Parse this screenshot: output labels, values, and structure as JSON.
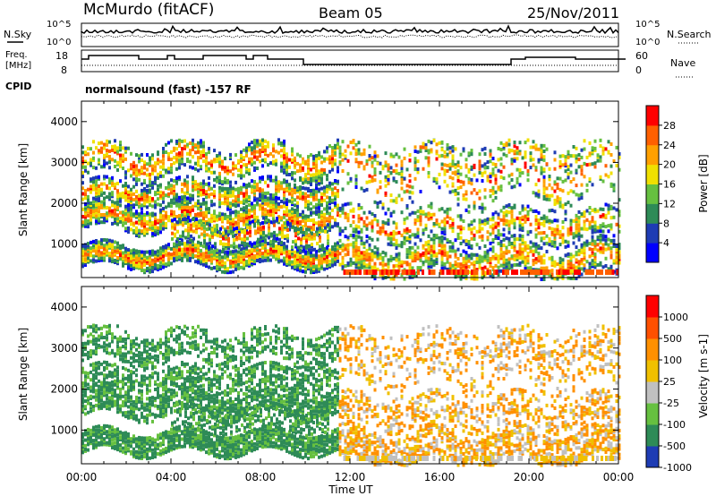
{
  "header": {
    "station": "McMurdo (fitACF)",
    "beam": "Beam 05",
    "date": "25/Nov/2011"
  },
  "noise_panel": {
    "left_label": "N.Sky",
    "right_label": "N.Search",
    "left_ticks": [
      "10^5",
      "10^0"
    ],
    "right_ticks": [
      "10^5",
      "10^0"
    ]
  },
  "freq_panel": {
    "left_label_1": "Freq.",
    "left_label_2": "[MHz]",
    "right_label": "Nave",
    "left_ticks": [
      "18",
      "8"
    ],
    "right_ticks": [
      "60",
      "0"
    ]
  },
  "cpid": {
    "label": "CPID",
    "value": "normalsound (fast) -157 RF"
  },
  "chart_data": [
    {
      "type": "heatmap",
      "panel": "power",
      "ylabel": "Slant Range [km]",
      "xlabel": "Time UT",
      "y_ticks": [
        1000,
        2000,
        3000,
        4000
      ],
      "ylim": [
        180,
        4500
      ],
      "x_ticks": [
        "00:00",
        "04:00",
        "08:00",
        "12:00",
        "16:00",
        "20:00",
        "00:00"
      ],
      "colorbar": {
        "label": "Power [dB]",
        "ticks": [
          "28",
          "24",
          "20",
          "16",
          "12",
          "8",
          "4"
        ],
        "colors": [
          "#0000ff",
          "#1e3cb4",
          "#2e8b57",
          "#66c040",
          "#f0e000",
          "#ffa000",
          "#ff6000",
          "#ff0000"
        ]
      }
    },
    {
      "type": "heatmap",
      "panel": "velocity",
      "ylabel": "Slant Range [km]",
      "xlabel": "Time UT",
      "y_ticks": [
        1000,
        2000,
        3000,
        4000
      ],
      "ylim": [
        180,
        4500
      ],
      "x_ticks": [
        "00:00",
        "04:00",
        "08:00",
        "12:00",
        "16:00",
        "20:00",
        "00:00"
      ],
      "colorbar": {
        "label": "Velocity [m s-1]",
        "ticks": [
          "1000",
          "500",
          "100",
          "25",
          "-25",
          "-100",
          "-500",
          "-1000"
        ],
        "colors": [
          "#1e3cb4",
          "#2e8b57",
          "#66c040",
          "#c0c0c0",
          "#f0c000",
          "#ff9000",
          "#ff5000",
          "#ff0000"
        ]
      }
    }
  ]
}
